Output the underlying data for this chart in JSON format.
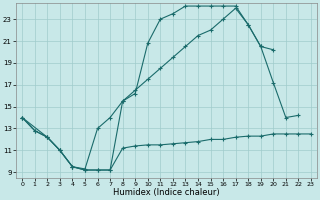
{
  "background_color": "#c8e8e8",
  "grid_color": "#a0cccc",
  "line_color": "#1a6b6b",
  "xlabel": "Humidex (Indice chaleur)",
  "xlim": [
    -0.5,
    23.5
  ],
  "ylim": [
    8.5,
    24.5
  ],
  "xticks": [
    0,
    1,
    2,
    3,
    4,
    5,
    6,
    7,
    8,
    9,
    10,
    11,
    12,
    13,
    14,
    15,
    16,
    17,
    18,
    19,
    20,
    21,
    22,
    23
  ],
  "yticks": [
    9,
    11,
    13,
    15,
    17,
    19,
    21,
    23
  ],
  "line1_x": [
    0,
    1,
    2,
    3,
    4,
    5,
    6,
    7,
    8,
    9,
    10,
    11,
    12,
    13,
    14,
    15,
    16,
    17,
    18,
    19,
    20,
    21,
    22,
    23
  ],
  "line1_y": [
    14.0,
    12.8,
    12.2,
    11.0,
    9.5,
    9.2,
    9.2,
    9.2,
    11.2,
    11.4,
    11.5,
    11.5,
    11.6,
    11.7,
    11.8,
    12.0,
    12.0,
    12.2,
    12.3,
    12.3,
    12.5,
    12.5,
    12.5,
    12.5
  ],
  "line2_x": [
    0,
    1,
    2,
    3,
    4,
    5,
    6,
    7,
    8,
    9,
    10,
    11,
    12,
    13,
    14,
    15,
    16,
    17,
    18,
    19,
    20,
    21,
    22
  ],
  "line2_y": [
    14.0,
    12.8,
    12.2,
    11.0,
    9.5,
    9.2,
    9.2,
    9.2,
    15.5,
    16.2,
    20.8,
    23.0,
    23.5,
    24.2,
    24.2,
    24.2,
    24.2,
    24.2,
    22.5,
    20.5,
    17.2,
    14.0,
    14.2
  ],
  "line3_x": [
    0,
    2,
    3,
    4,
    5,
    6,
    7,
    8,
    9,
    10,
    11,
    12,
    13,
    14,
    15,
    16,
    17,
    18,
    19,
    20
  ],
  "line3_y": [
    14.0,
    12.2,
    11.0,
    9.5,
    9.3,
    13.0,
    14.0,
    15.5,
    16.5,
    17.5,
    18.5,
    19.5,
    20.5,
    21.5,
    22.0,
    23.0,
    24.0,
    22.5,
    20.5,
    20.2
  ]
}
